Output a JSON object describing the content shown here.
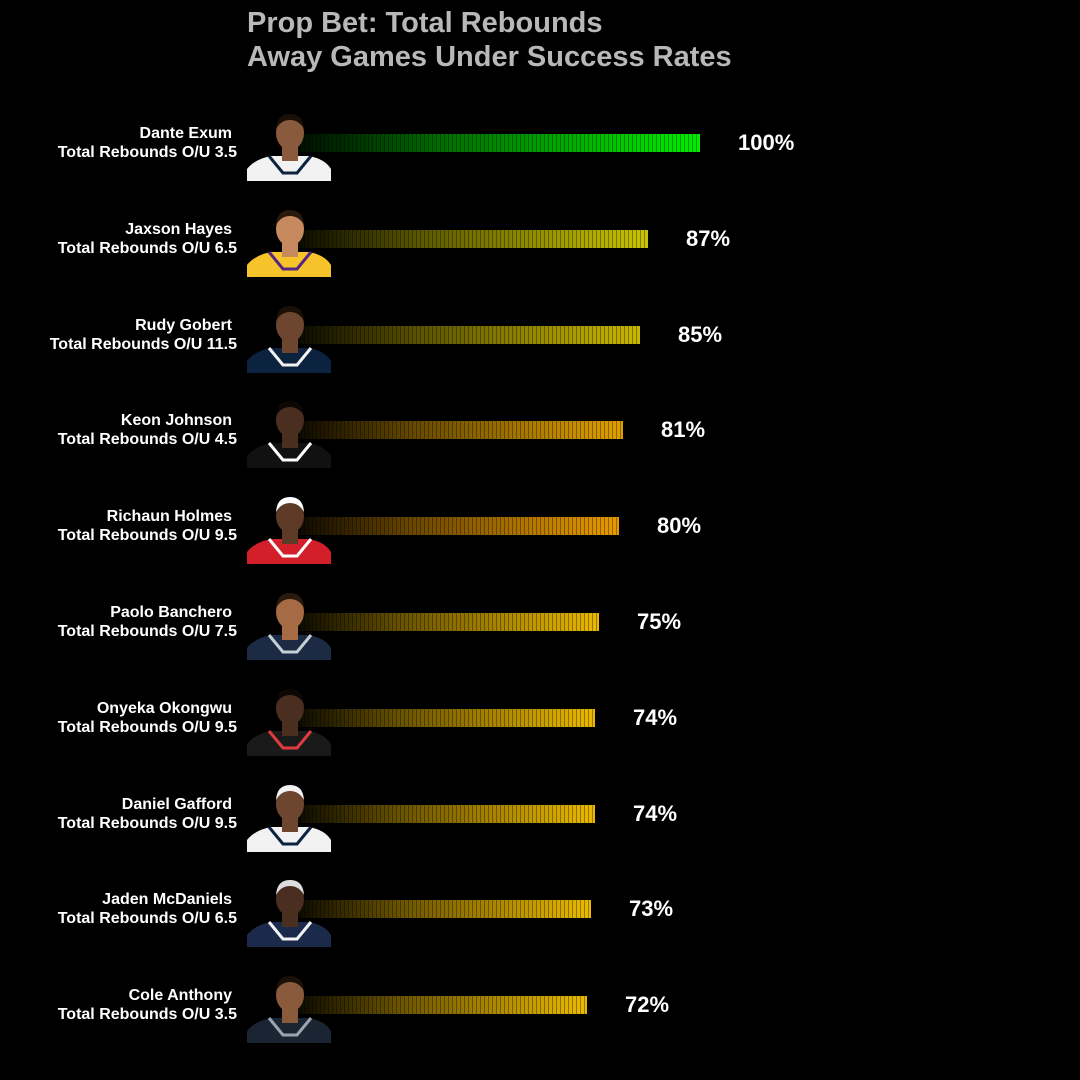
{
  "chart_data": {
    "type": "bar",
    "orientation": "horizontal",
    "title": [
      "Prop Bet: Total Rebounds",
      "Away Games Under Success Rates"
    ],
    "value_format": "percent",
    "xlim": [
      0,
      100
    ],
    "rows": [
      {
        "name": "Dante Exum",
        "prop": "Total Rebounds O/U 3.5",
        "value": 100,
        "label": "100%",
        "color": "#00ee00",
        "jersey": "#f2f2f2",
        "trim": "#0c2340",
        "skin": "#8a5a3c",
        "hair": "#1a1008"
      },
      {
        "name": "Jaxson Hayes",
        "prop": "Total Rebounds O/U 6.5",
        "value": 87,
        "label": "87%",
        "color": "#c9c300",
        "jersey": "#f6c42a",
        "trim": "#552583",
        "skin": "#c68a5e",
        "hair": "#2a1a0e"
      },
      {
        "name": "Rudy Gobert",
        "prop": "Total Rebounds O/U 11.5",
        "value": 85,
        "label": "85%",
        "color": "#c9b700",
        "jersey": "#0c2340",
        "trim": "#f2f2f2",
        "skin": "#6e4630",
        "hair": "#1a1008"
      },
      {
        "name": "Keon Johnson",
        "prop": "Total Rebounds O/U 4.5",
        "value": 81,
        "label": "81%",
        "color": "#e0a000",
        "jersey": "#111111",
        "trim": "#ffffff",
        "skin": "#4a2e1f",
        "hair": "#0d0806"
      },
      {
        "name": "Richaun Holmes",
        "prop": "Total Rebounds O/U 9.5",
        "value": 80,
        "label": "80%",
        "color": "#e99a00",
        "jersey": "#d21f2a",
        "trim": "#ffffff",
        "skin": "#5c3a26",
        "hair": "#ffffff"
      },
      {
        "name": "Paolo Banchero",
        "prop": "Total Rebounds O/U 7.5",
        "value": 75,
        "label": "75%",
        "color": "#eab800",
        "jersey": "#1d2a44",
        "trim": "#c4ced4",
        "skin": "#a56b45",
        "hair": "#2a1a0e"
      },
      {
        "name": "Onyeka Okongwu",
        "prop": "Total Rebounds O/U 9.5",
        "value": 74,
        "label": "74%",
        "color": "#ebb900",
        "jersey": "#1a1a1a",
        "trim": "#e03a3e",
        "skin": "#4a2e1f",
        "hair": "#0d0806"
      },
      {
        "name": "Daniel Gafford",
        "prop": "Total Rebounds O/U 9.5",
        "value": 74,
        "label": "74%",
        "color": "#ebb900",
        "jersey": "#f2f2f2",
        "trim": "#0c2340",
        "skin": "#6e4630",
        "hair": "#f2f2f2"
      },
      {
        "name": "Jaden McDaniels",
        "prop": "Total Rebounds O/U 6.5",
        "value": 73,
        "label": "73%",
        "color": "#ebba00",
        "jersey": "#1b2a4a",
        "trim": "#f2f2f2",
        "skin": "#4a2e1f",
        "hair": "#dddddd"
      },
      {
        "name": "Cole Anthony",
        "prop": "Total Rebounds O/U 3.5",
        "value": 72,
        "label": "72%",
        "color": "#ebba00",
        "jersey": "#1b2433",
        "trim": "#9aa4b0",
        "skin": "#8a5a3c",
        "hair": "#1a1008"
      }
    ]
  }
}
